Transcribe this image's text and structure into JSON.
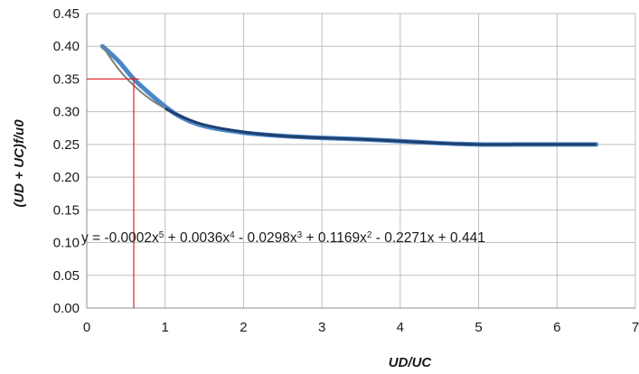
{
  "chart_data": {
    "type": "line",
    "xlabel": "UD/UC",
    "ylabel": "(UD + UC)f/u0",
    "xlim": [
      0,
      7
    ],
    "ylim": [
      0,
      0.45
    ],
    "x_ticks": [
      "0",
      "1",
      "2",
      "3",
      "4",
      "5",
      "6",
      "7"
    ],
    "y_ticks": [
      "0.00",
      "0.05",
      "0.10",
      "0.15",
      "0.20",
      "0.25",
      "0.30",
      "0.35",
      "0.40",
      "0.45"
    ],
    "grid": true,
    "colors": {
      "data_curve": "#4a86c8",
      "trend_curve": "#7f7f7f",
      "overlay_curve": "#1f3f6e",
      "reference_lines": "#e02020"
    },
    "series": [
      {
        "role": "data",
        "x": [
          0.2,
          0.4,
          0.6,
          0.8,
          1.0,
          1.2,
          1.5,
          2.0,
          2.5,
          3.0,
          3.5,
          4.0,
          4.5,
          5.0,
          5.5,
          6.0,
          6.5
        ],
        "y": [
          0.4,
          0.378,
          0.35,
          0.328,
          0.308,
          0.292,
          0.278,
          0.268,
          0.263,
          0.26,
          0.258,
          0.255,
          0.252,
          0.25,
          0.25,
          0.25,
          0.25
        ]
      },
      {
        "role": "trendline",
        "x": [
          0.2,
          0.4,
          0.6,
          0.8,
          1.0,
          1.2,
          1.5,
          2.0,
          2.5,
          3.0,
          3.5,
          4.0,
          4.5,
          5.0,
          5.5,
          6.0,
          6.5
        ],
        "y": [
          0.4,
          0.366,
          0.34,
          0.32,
          0.305,
          0.293,
          0.28,
          0.269,
          0.263,
          0.26,
          0.258,
          0.255,
          0.252,
          0.25,
          0.25,
          0.25,
          0.25
        ]
      }
    ],
    "reference_point": {
      "x": 0.6,
      "y": 0.35
    },
    "annotation": {
      "x": 0,
      "y": 0.108,
      "parts": [
        {
          "t": "y = -0.0002x",
          "sup": false
        },
        {
          "t": "5",
          "sup": true
        },
        {
          "t": " + 0.0036x",
          "sup": false
        },
        {
          "t": "4",
          "sup": true
        },
        {
          "t": " - 0.0298x",
          "sup": false
        },
        {
          "t": "3",
          "sup": true
        },
        {
          "t": " + 0.1169x",
          "sup": false
        },
        {
          "t": "2",
          "sup": true
        },
        {
          "t": " - 0.2271x + 0.441",
          "sup": false
        }
      ]
    }
  }
}
